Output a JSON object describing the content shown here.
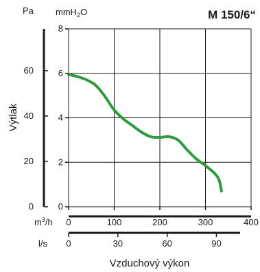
{
  "chart_data": {
    "type": "line",
    "title": "M 150/6“",
    "ylabel": "Výtlak",
    "xlabel": "Vzduchový výkon",
    "x_unit_primary": "m3/h",
    "x_unit_secondary": "l/s",
    "y_unit_primary": "Pa",
    "y_unit_secondary": "mmH2O",
    "x_ticks_primary": [
      "0",
      "100",
      "200",
      "300",
      "400"
    ],
    "x_ticks_secondary": [
      "0",
      "30",
      "60",
      "90"
    ],
    "y_ticks_pa": [
      "0",
      "20",
      "40",
      "60"
    ],
    "y_ticks_mmh2o": [
      "0",
      "2",
      "4",
      "6",
      "8"
    ],
    "xlim": [
      0,
      400
    ],
    "ylim_mmh2o": [
      0,
      8
    ],
    "grid": true,
    "series": [
      {
        "color": "#2e9a3c",
        "x": [
          0,
          20,
          40,
          60,
          80,
          100,
          120,
          140,
          160,
          180,
          200,
          220,
          240,
          260,
          280,
          300,
          320,
          330,
          335
        ],
        "y": [
          5.95,
          5.85,
          5.7,
          5.45,
          4.95,
          4.35,
          3.95,
          3.65,
          3.35,
          3.15,
          3.12,
          3.15,
          3.0,
          2.55,
          2.15,
          1.85,
          1.5,
          1.2,
          0.7
        ]
      }
    ]
  }
}
